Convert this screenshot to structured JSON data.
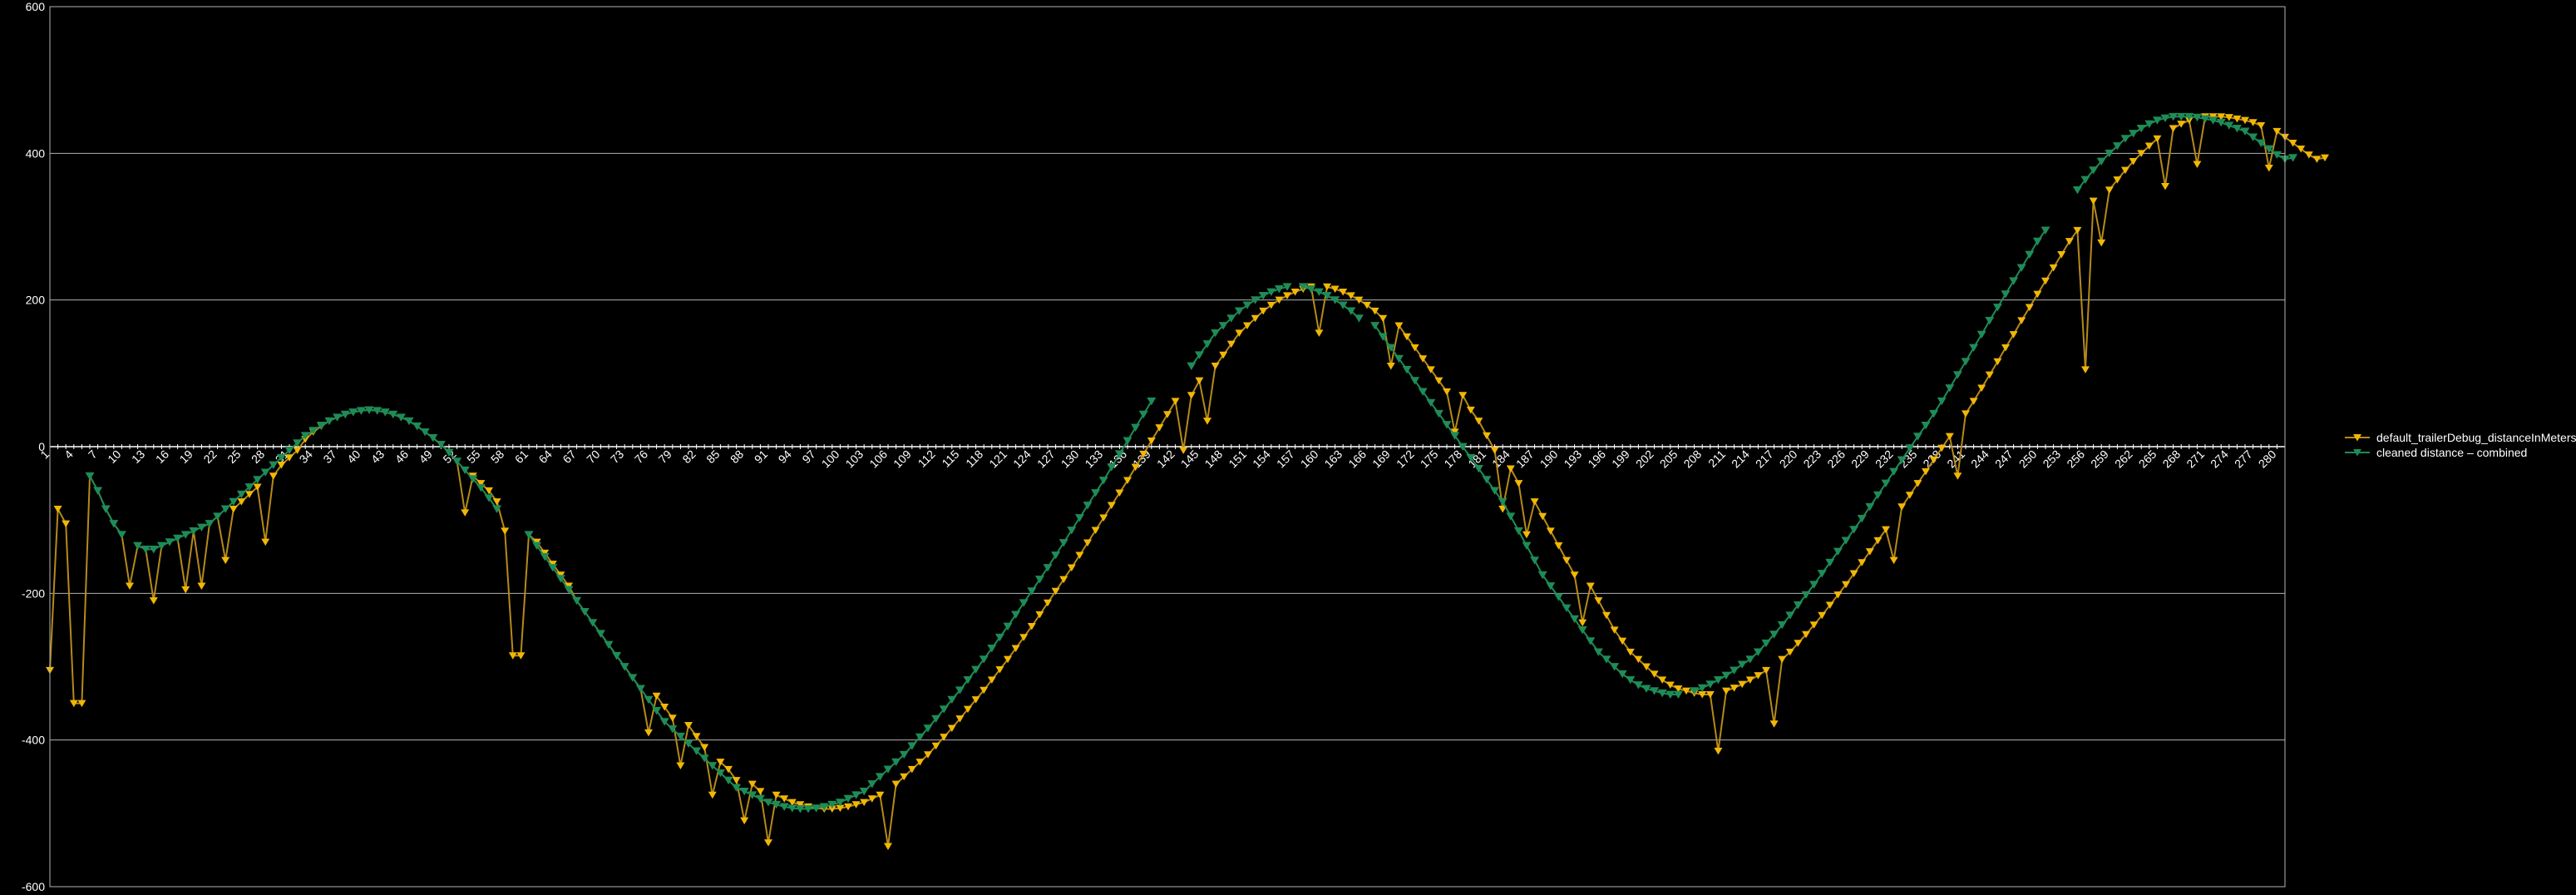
{
  "colors": {
    "background": "#000000",
    "grid": "#b3b3b3",
    "axis": "#d9d9d9",
    "raw_series": "#f2b705",
    "raw_line": "#b58a1a",
    "clean_series": "#1e8c57"
  },
  "chart_data": {
    "type": "line",
    "x_range": [
      1,
      281
    ],
    "ylim": [
      -600,
      600
    ],
    "y_ticks": [
      -600,
      -400,
      -200,
      0,
      200,
      400,
      600
    ],
    "x_ticks": [
      1,
      4,
      7,
      10,
      13,
      16,
      19,
      22,
      25,
      28,
      31,
      34,
      37,
      40,
      43,
      46,
      49,
      52,
      55,
      58,
      61,
      64,
      67,
      70,
      73,
      76,
      79,
      82,
      85,
      88,
      91,
      94,
      97,
      100,
      103,
      106,
      109,
      112,
      115,
      118,
      121,
      124,
      127,
      130,
      133,
      136,
      139,
      142,
      145,
      148,
      151,
      154,
      157,
      160,
      163,
      166,
      169,
      172,
      175,
      178,
      181,
      184,
      187,
      190,
      193,
      196,
      199,
      202,
      205,
      208,
      211,
      214,
      217,
      220,
      223,
      226,
      229,
      232,
      235,
      238,
      241,
      244,
      247,
      250,
      253,
      256,
      259,
      262,
      265,
      268,
      271,
      274,
      277,
      280
    ],
    "grid": "horizontal",
    "legend_position": "right",
    "series": [
      {
        "name": "default_trailerDebug_distanceInMeters",
        "marker": "triangle-down",
        "values": [
          -305,
          -85,
          -105,
          -350,
          -350,
          -40,
          -60,
          -85,
          -105,
          -120,
          -190,
          -135,
          -140,
          -210,
          -135,
          -130,
          -125,
          -195,
          -115,
          -190,
          -105,
          -95,
          -155,
          -85,
          -75,
          -65,
          -55,
          -130,
          -40,
          -25,
          -15,
          -5,
          10,
          20,
          28,
          35,
          40,
          44,
          47,
          49,
          50,
          49,
          47,
          44,
          40,
          35,
          28,
          20,
          12,
          3,
          -8,
          -20,
          -90,
          -40,
          -50,
          -60,
          -75,
          -115,
          -285,
          -285,
          -120,
          -130,
          -145,
          -160,
          -175,
          -190,
          -210,
          -225,
          -240,
          -255,
          -270,
          -285,
          -300,
          -315,
          -330,
          -390,
          -340,
          -355,
          -370,
          -435,
          -380,
          -395,
          -410,
          -475,
          -430,
          -440,
          -455,
          -510,
          -460,
          -470,
          -540,
          -475,
          -480,
          -485,
          -488,
          -491,
          -493,
          -494,
          -494,
          -493,
          -491,
          -488,
          -485,
          -480,
          -475,
          -545,
          -460,
          -450,
          -440,
          -430,
          -420,
          -408,
          -396,
          -384,
          -371,
          -358,
          -345,
          -332,
          -318,
          -304,
          -290,
          -275,
          -260,
          -245,
          -229,
          -213,
          -197,
          -181,
          -165,
          -148,
          -131,
          -114,
          -97,
          -80,
          -63,
          -46,
          -28,
          -10,
          8,
          26,
          44,
          62,
          -5,
          70,
          90,
          35,
          110,
          125,
          140,
          155,
          165,
          175,
          185,
          193,
          200,
          206,
          211,
          215,
          218,
          155,
          218,
          215,
          211,
          206,
          200,
          193,
          185,
          175,
          110,
          165,
          150,
          135,
          120,
          105,
          90,
          75,
          20,
          70,
          50,
          35,
          15,
          -5,
          -85,
          -30,
          -50,
          -120,
          -75,
          -95,
          -115,
          -135,
          -155,
          -175,
          -240,
          -190,
          -210,
          -230,
          -250,
          -265,
          -280,
          -290,
          -300,
          -310,
          -318,
          -325,
          -330,
          -333,
          -336,
          -338,
          -338,
          -415,
          -333,
          -329,
          -324,
          -318,
          -312,
          -305,
          -378,
          -290,
          -280,
          -268,
          -256,
          -243,
          -230,
          -216,
          -202,
          -188,
          -173,
          -158,
          -143,
          -128,
          -113,
          -155,
          -82,
          -66,
          -50,
          -34,
          -18,
          -2,
          14,
          -40,
          45,
          62,
          80,
          98,
          116,
          135,
          153,
          172,
          190,
          208,
          226,
          244,
          262,
          280,
          295,
          105,
          335,
          278,
          350,
          364,
          377,
          389,
          400,
          410,
          420,
          355,
          434,
          440,
          445,
          385,
          450,
          450,
          450,
          449,
          447,
          445,
          442,
          438,
          380,
          430,
          422,
          414,
          406,
          398,
          392,
          394
        ]
      },
      {
        "name": "cleaned distance – combined",
        "marker": "triangle-down",
        "values": [
          null,
          null,
          null,
          null,
          null,
          -40,
          -60,
          -85,
          -105,
          -120,
          null,
          -135,
          -140,
          -140,
          -135,
          -130,
          -125,
          -120,
          -115,
          -110,
          -105,
          -95,
          -85,
          -75,
          -65,
          -55,
          -45,
          -35,
          -25,
          -15,
          -5,
          5,
          15,
          22,
          29,
          35,
          40,
          44,
          47,
          49,
          50,
          49,
          47,
          44,
          40,
          35,
          28,
          20,
          12,
          3,
          -8,
          -20,
          -32,
          -44,
          -56,
          -70,
          -85,
          null,
          null,
          null,
          -120,
          -135,
          -150,
          -165,
          -180,
          -195,
          -210,
          -225,
          -240,
          -255,
          -270,
          -285,
          -300,
          -315,
          -330,
          -345,
          -360,
          -375,
          -385,
          -395,
          -405,
          -415,
          -425,
          -435,
          -445,
          -455,
          -465,
          -470,
          -475,
          -480,
          -485,
          -488,
          -491,
          -493,
          -494,
          -494,
          -493,
          -491,
          -488,
          -485,
          -480,
          -475,
          -470,
          -460,
          -450,
          -440,
          -430,
          -420,
          -408,
          -396,
          -384,
          -371,
          -358,
          -345,
          -332,
          -318,
          -304,
          -290,
          -275,
          -260,
          -245,
          -229,
          -213,
          -197,
          -181,
          -165,
          -148,
          -131,
          -114,
          -97,
          -80,
          -63,
          -46,
          -28,
          -10,
          8,
          26,
          44,
          62,
          null,
          null,
          null,
          null,
          110,
          125,
          140,
          155,
          165,
          175,
          185,
          193,
          200,
          206,
          211,
          215,
          218,
          null,
          218,
          215,
          211,
          206,
          200,
          193,
          185,
          175,
          null,
          165,
          150,
          135,
          120,
          105,
          90,
          75,
          60,
          45,
          30,
          15,
          0,
          -15,
          -30,
          -45,
          -60,
          -75,
          -95,
          -115,
          -135,
          -155,
          -175,
          -190,
          -205,
          -220,
          -235,
          -250,
          -265,
          -280,
          -290,
          -300,
          -310,
          -318,
          -325,
          -330,
          -333,
          -336,
          -338,
          -338,
          null,
          -333,
          -329,
          -324,
          -318,
          -312,
          -305,
          -297,
          -290,
          -280,
          -268,
          -256,
          -243,
          -230,
          -216,
          -202,
          -188,
          -173,
          -158,
          -143,
          -128,
          -113,
          -98,
          -82,
          -66,
          -50,
          -34,
          -18,
          -2,
          14,
          29,
          45,
          62,
          80,
          98,
          116,
          135,
          153,
          172,
          190,
          208,
          226,
          244,
          262,
          280,
          295,
          null,
          null,
          null,
          350,
          364,
          377,
          389,
          400,
          410,
          420,
          427,
          434,
          440,
          445,
          448,
          450,
          450,
          450,
          449,
          447,
          445,
          442,
          438,
          434,
          430,
          422,
          414,
          406,
          398,
          392,
          394
        ]
      }
    ]
  }
}
